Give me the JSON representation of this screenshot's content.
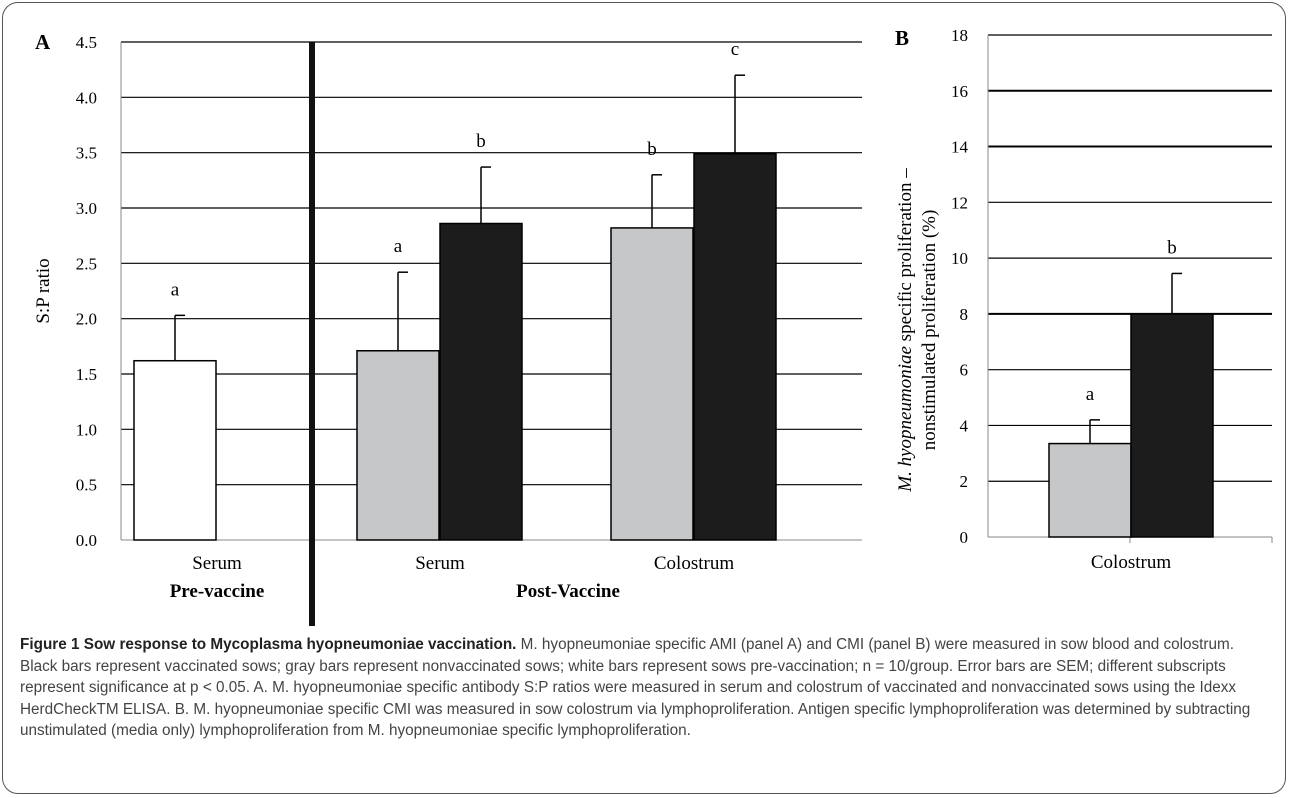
{
  "chart_data": [
    {
      "type": "bar",
      "panel_label": "A",
      "ylabel": "S:P ratio",
      "ylim": [
        0,
        4.5
      ],
      "yticks": [
        "0.0",
        "0.5",
        "1.0",
        "1.5",
        "2.0",
        "2.5",
        "3.0",
        "3.5",
        "4.0",
        "4.5"
      ],
      "grid": true,
      "groups": [
        {
          "label": "Serum",
          "section": "Pre-vaccine",
          "bars": [
            {
              "kind": "pre-vaccination",
              "fill": "#ffffff",
              "value": 1.62,
              "err": 0.41,
              "letter": "a"
            }
          ]
        },
        {
          "label": "Serum",
          "section": "Post-Vaccine",
          "bars": [
            {
              "kind": "nonvaccinated",
              "fill": "#c6c7c8",
              "value": 1.71,
              "err": 0.71,
              "letter": "a"
            },
            {
              "kind": "vaccinated",
              "fill": "#1c1c1c",
              "value": 2.86,
              "err": 0.51,
              "letter": "b"
            }
          ]
        },
        {
          "label": "Colostrum",
          "section": "Post-Vaccine",
          "bars": [
            {
              "kind": "nonvaccinated",
              "fill": "#c6c7c8",
              "value": 2.82,
              "err": 0.48,
              "letter": "b"
            },
            {
              "kind": "vaccinated",
              "fill": "#1c1c1c",
              "value": 3.49,
              "err": 0.71,
              "letter": "c"
            }
          ]
        }
      ],
      "section_labels": [
        "Pre-vaccine",
        "Post-Vaccine"
      ]
    },
    {
      "type": "bar",
      "panel_label": "B",
      "ylabel_italic": "M. hyopneumoniae",
      "ylabel_line1_rest": " specific proliferation –",
      "ylabel_line2": "nonstimulated proliferation (%)",
      "ylim": [
        0,
        18
      ],
      "yticks": [
        "0",
        "2",
        "4",
        "6",
        "8",
        "10",
        "12",
        "14",
        "16",
        "18"
      ],
      "grid": true,
      "groups": [
        {
          "label": "Colostrum",
          "bars": [
            {
              "kind": "nonvaccinated",
              "fill": "#c6c7c8",
              "value": 3.35,
              "err": 0.85,
              "letter": "a"
            },
            {
              "kind": "vaccinated",
              "fill": "#1c1c1c",
              "value": 8.0,
              "err": 1.45,
              "letter": "b"
            }
          ]
        }
      ]
    }
  ],
  "caption": {
    "head": "Figure 1 Sow response to Mycoplasma hyopneumoniae vaccination.",
    "text": "M. hyopneumoniae specific AMI (panel A) and CMI (panel B) were measured in sow blood and colostrum. Black bars represent vaccinated sows; gray bars represent nonvaccinated sows; white bars represent sows pre-vaccination; n = 10/group. Error bars are SEM; different subscripts represent significance at p < 0.05. A. M. hyopneumoniae specific antibody S:P ratios were measured in serum and colostrum of vaccinated and nonvaccinated sows using the Idexx HerdCheckTM ELISA. B. M. hyopneumoniae specific CMI was measured in sow colostrum via lymphoproliferation. Antigen specific lymphoproliferation was determined by subtracting unstimulated (media only) lymphoproliferation from M. hyopneumoniae specific lymphoproliferation."
  }
}
